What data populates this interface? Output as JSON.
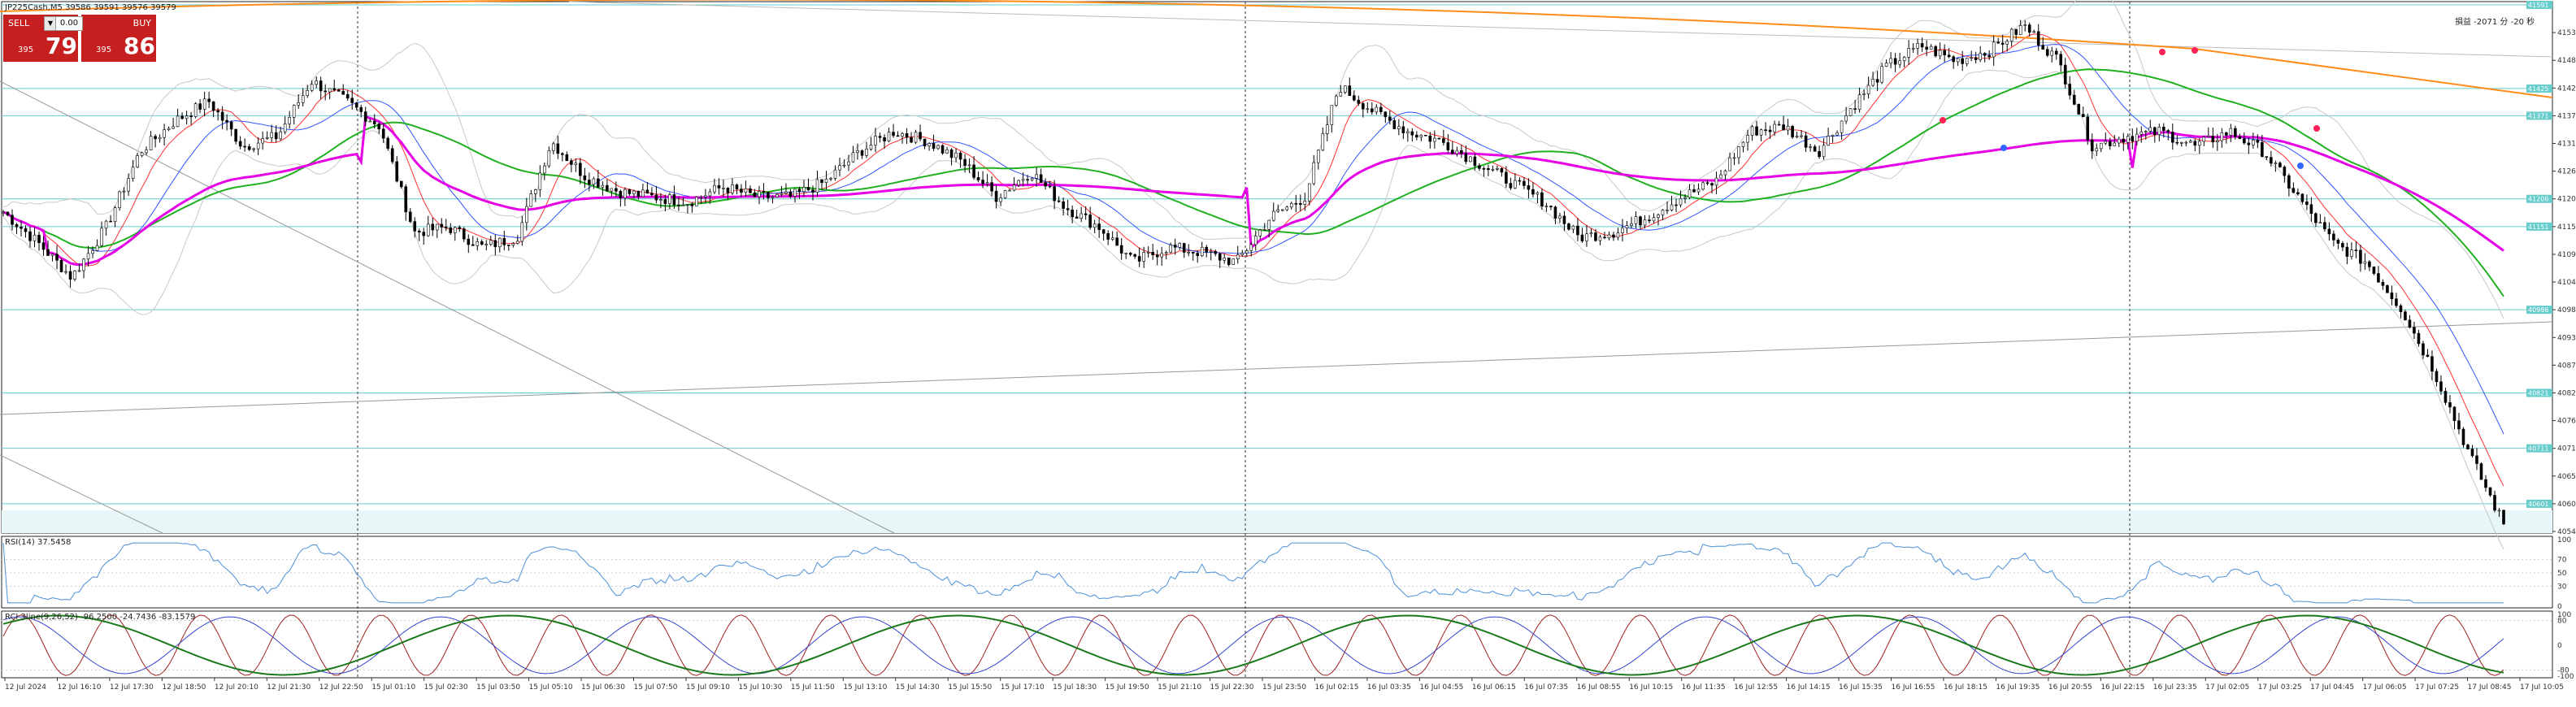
{
  "header": {
    "symbol_line": "JP225Cash,M5  39586 39591 39576 39579"
  },
  "trade_panel": {
    "sell_label": "SELL",
    "buy_label": "BUY",
    "lot": "0.00",
    "sell_small": "395",
    "sell_big": "79",
    "buy_small": "395",
    "buy_big": "86"
  },
  "corner_info": "損益 -2071 分 -20 秒",
  "price_axis": [
    "41536",
    "41481",
    "41426",
    "41371",
    "41316",
    "41261",
    "41206",
    "41151",
    "41096",
    "41041",
    "40986",
    "40931",
    "40876",
    "40821",
    "40766",
    "40711",
    "40656",
    "40601",
    "40546"
  ],
  "level_tags": [
    "41591",
    "41425",
    "41371",
    "41206",
    "41151",
    "40986",
    "40821",
    "40711",
    "40601"
  ],
  "time_axis": [
    "12 Jul 2024",
    "12 Jul 16:10",
    "12 Jul 17:30",
    "12 Jul 18:50",
    "12 Jul 20:10",
    "12 Jul 21:30",
    "12 Jul 22:50",
    "15 Jul 01:10",
    "15 Jul 02:30",
    "15 Jul 03:50",
    "15 Jul 05:10",
    "15 Jul 06:30",
    "15 Jul 07:50",
    "15 Jul 09:10",
    "15 Jul 10:30",
    "15 Jul 11:50",
    "15 Jul 13:10",
    "15 Jul 14:30",
    "15 Jul 15:50",
    "15 Jul 17:10",
    "15 Jul 18:30",
    "15 Jul 19:50",
    "15 Jul 21:10",
    "15 Jul 22:30",
    "15 Jul 23:50",
    "16 Jul 02:15",
    "16 Jul 03:35",
    "16 Jul 04:55",
    "16 Jul 06:15",
    "16 Jul 07:35",
    "16 Jul 08:55",
    "16 Jul 10:15",
    "16 Jul 11:35",
    "16 Jul 12:55",
    "16 Jul 14:15",
    "16 Jul 15:35",
    "16 Jul 16:55",
    "16 Jul 18:15",
    "16 Jul 19:35",
    "16 Jul 20:55",
    "16 Jul 22:15",
    "16 Jul 23:35",
    "17 Jul 02:05",
    "17 Jul 03:25",
    "17 Jul 04:45",
    "17 Jul 06:05",
    "17 Jul 07:25",
    "17 Jul 08:45",
    "17 Jul 10:05"
  ],
  "rsi_label": "RSI(14) 37.5458",
  "rsi_axis": [
    "100",
    "70",
    "50",
    "30",
    "0"
  ],
  "rci_label": "RCI 3line(9,26,52) -96.2500 -24.7436 -83.1579",
  "rci_axis": [
    "100",
    "80",
    "0",
    "-80",
    "-100"
  ],
  "colors": {
    "bull": "#000000",
    "bear": "#000000",
    "vwap": "#e600e6",
    "ma_long": "#ff8c1a",
    "ma_mid": "#20b020",
    "ma_fast": "#3355ff",
    "ma_red": "#ff3030",
    "level": "#66cccc",
    "rsi": "#4a90d9"
  },
  "chart_data": {
    "type": "candlestick",
    "symbol": "JP225Cash",
    "timeframe": "M5",
    "ylim": [
      40546,
      41591
    ],
    "close_path": [
      [
        0,
        41180
      ],
      [
        1,
        41120
      ],
      [
        2,
        41050
      ],
      [
        3,
        41150
      ],
      [
        4,
        41300
      ],
      [
        5,
        41360
      ],
      [
        6,
        41400
      ],
      [
        7,
        41310
      ],
      [
        8,
        41330
      ],
      [
        9,
        41440
      ],
      [
        10,
        41400
      ],
      [
        11,
        41350
      ],
      [
        12,
        41140
      ],
      [
        13,
        41150
      ],
      [
        14,
        41110
      ],
      [
        15,
        41130
      ],
      [
        16,
        41320
      ],
      [
        17,
        41250
      ],
      [
        18,
        41220
      ],
      [
        19,
        41210
      ],
      [
        20,
        41200
      ],
      [
        21,
        41230
      ],
      [
        22,
        41210
      ],
      [
        23,
        41210
      ],
      [
        24,
        41240
      ],
      [
        25,
        41300
      ],
      [
        26,
        41340
      ],
      [
        27,
        41320
      ],
      [
        28,
        41280
      ],
      [
        29,
        41210
      ],
      [
        30,
        41260
      ],
      [
        31,
        41190
      ],
      [
        32,
        41150
      ],
      [
        33,
        41080
      ],
      [
        34,
        41110
      ],
      [
        35,
        41100
      ],
      [
        36,
        41080
      ],
      [
        37,
        41170
      ],
      [
        38,
        41210
      ],
      [
        39,
        41430
      ],
      [
        40,
        41380
      ],
      [
        41,
        41340
      ],
      [
        42,
        41320
      ],
      [
        43,
        41280
      ],
      [
        44,
        41240
      ],
      [
        45,
        41200
      ],
      [
        46,
        41130
      ],
      [
        47,
        41140
      ],
      [
        48,
        41170
      ],
      [
        49,
        41210
      ],
      [
        50,
        41240
      ],
      [
        51,
        41340
      ],
      [
        52,
        41350
      ],
      [
        53,
        41300
      ],
      [
        54,
        41390
      ],
      [
        55,
        41470
      ],
      [
        56,
        41510
      ],
      [
        57,
        41480
      ],
      [
        58,
        41500
      ],
      [
        59,
        41550
      ],
      [
        60,
        41480
      ],
      [
        61,
        41310
      ],
      [
        62,
        41330
      ],
      [
        63,
        41340
      ],
      [
        64,
        41310
      ],
      [
        65,
        41340
      ],
      [
        66,
        41300
      ],
      [
        67,
        41210
      ],
      [
        68,
        41120
      ],
      [
        69,
        41080
      ],
      [
        70,
        40990
      ],
      [
        71,
        40860
      ],
      [
        72,
        40700
      ],
      [
        73,
        40560
      ]
    ]
  }
}
